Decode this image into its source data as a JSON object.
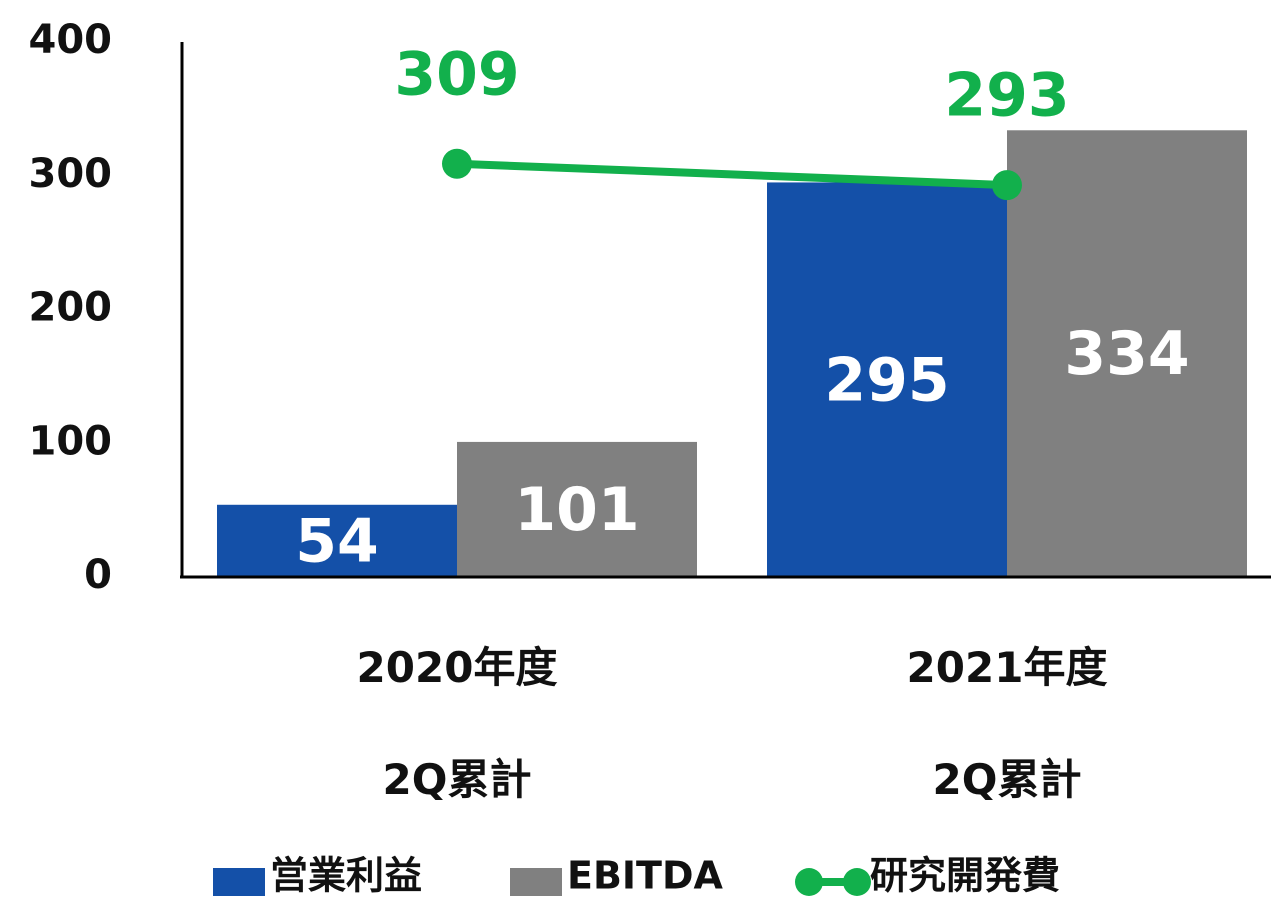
{
  "chart_data": {
    "type": "bar",
    "categories": [
      "2020年度\n2Q累計",
      "2021年度\n2Q累計"
    ],
    "series": [
      {
        "name": "営業利益",
        "color": "#1450a8",
        "values": [
          54,
          295
        ]
      },
      {
        "name": "EBITDA",
        "color": "#808080",
        "values": [
          101,
          334
        ]
      },
      {
        "name": "研究開発費",
        "color": "#12b04c",
        "type": "line",
        "values": [
          309,
          293
        ]
      }
    ],
    "ylim": [
      0,
      400
    ],
    "yticks": [
      0,
      100,
      200,
      300,
      400
    ],
    "legend": "bottom"
  }
}
